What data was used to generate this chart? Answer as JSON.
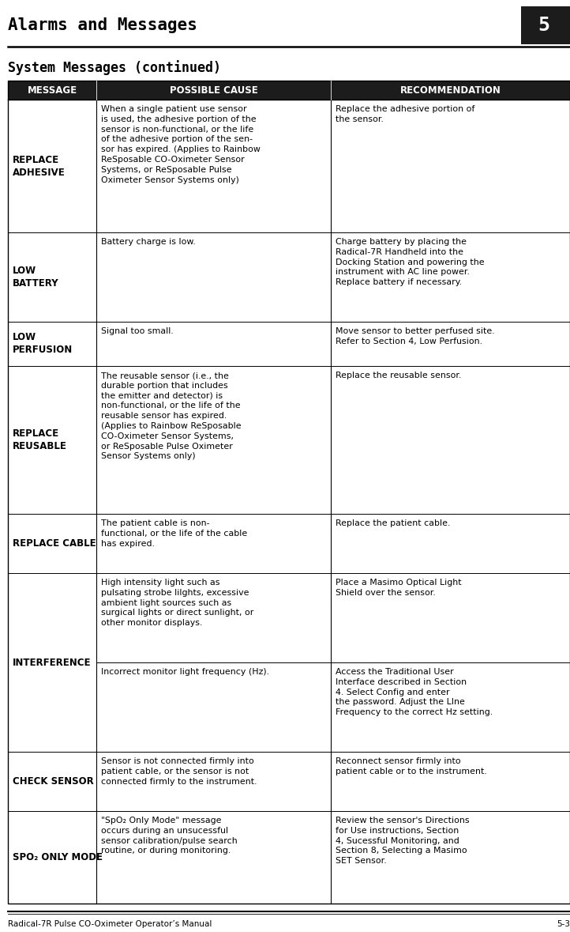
{
  "page_title": "Alarms and Messages",
  "page_number": "5",
  "section_title": "System Messages (continued)",
  "footer_left": "Radical-7R Pulse CO-Oximeter Operator’s Manual",
  "footer_right": "5-3",
  "col_headers": [
    "MESSAGE",
    "POSSIBLE CAUSE",
    "RECOMMENDATION"
  ],
  "rows": [
    {
      "message": "REPLACE\nADHESIVE",
      "cause": "When a single patient use sensor\nis used, the adhesive portion of the\nsensor is non-functional, or the life\nof the adhesive portion of the sen-\nsor has expired. (Applies to Rainbow\nReSposable CO-Oximeter Sensor\nSystems, or ReSposable Pulse\nOximeter Sensor Systems only)",
      "recommendation": "Replace the adhesive portion of\nthe sensor.",
      "sub_rows": 1
    },
    {
      "message": "LOW\nBATTERY",
      "cause": "Battery charge is low.",
      "recommendation": "Charge battery by placing the\nRadical-7R Handheld into the\nDocking Station and powering the\ninstrument with AC line power.\nReplace battery if necessary.",
      "sub_rows": 1
    },
    {
      "message": "LOW\nPERFUSION",
      "cause": "Signal too small.",
      "recommendation": "Move sensor to better perfused site.\nRefer to Section 4, Low Perfusion.",
      "sub_rows": 1
    },
    {
      "message": "REPLACE\nREUSABLE",
      "cause": "The reusable sensor (i.e., the\ndurable portion that includes\nthe emitter and detector) is\nnon-functional, or the life of the\nreusable sensor has expired.\n(Applies to Rainbow ReSposable\nCO-Oximeter Sensor Systems,\nor ReSposable Pulse Oximeter\nSensor Systems only)",
      "recommendation": "Replace the reusable sensor.",
      "sub_rows": 1
    },
    {
      "message": "REPLACE CABLE",
      "cause": "The patient cable is non-\nfunctional, or the life of the cable\nhas expired.",
      "recommendation": "Replace the patient cable.",
      "sub_rows": 1
    },
    {
      "message": "INTERFERENCE",
      "cause": "High intensity light such as\npulsating strobe lilghts, excessive\nambient light sources such as\nsurgical lights or direct sunlight, or\nother monitor displays.",
      "recommendation": "Place a Masimo Optical Light\nShield over the sensor.",
      "cause2": "Incorrect monitor light frequency (Hz).",
      "recommendation2": "Access the Traditional User\nInterface described in Section\n4. Select Config and enter\nthe password. Adjust the LIne\nFrequency to the correct Hz setting.",
      "sub_rows": 2
    },
    {
      "message": "CHECK SENSOR",
      "cause": "Sensor is not connected firmly into\npatient cable, or the sensor is not\nconnected firmly to the instrument.",
      "recommendation": "Reconnect sensor firmly into\npatient cable or to the instrument.",
      "sub_rows": 1
    },
    {
      "message": "SPO₂ ONLY MODE",
      "cause": "\"SpO₂ Only Mode\" message\noccurs during an unsucessful\nsensor calibration/pulse search\nroutine, or during monitoring.",
      "recommendation": "Review the sensor's Directions\nfor Use instructions, Section\n4, Sucessful Monitoring, and\nSection 8, Selecting a Masimo\nSET Sensor.",
      "sub_rows": 1
    }
  ]
}
